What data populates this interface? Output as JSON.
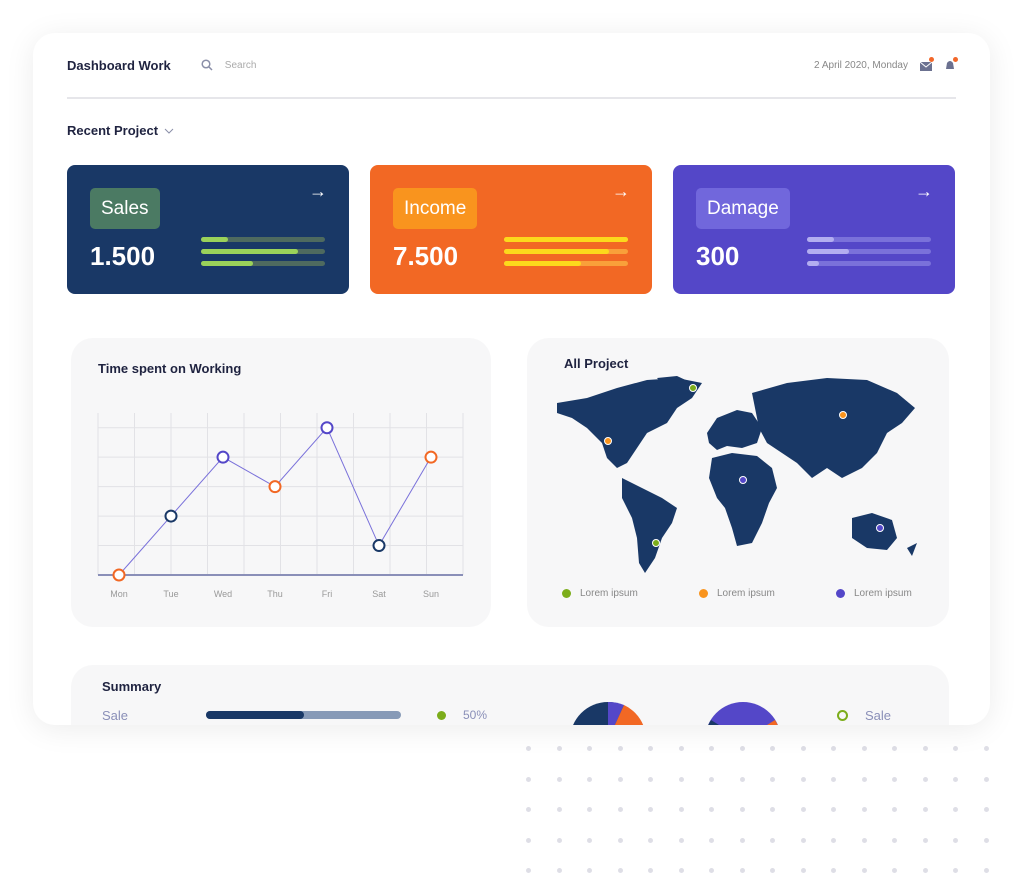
{
  "header": {
    "title": "Dashboard Work",
    "search_placeholder": "Search",
    "date": "2 April 2020, Monday",
    "icons": [
      "search-icon",
      "mail-icon",
      "bell-icon"
    ]
  },
  "recent": {
    "label": "Recent Project"
  },
  "cards": [
    {
      "label": "Sales",
      "value": "1.500",
      "bg": "#193866",
      "label_bg": "#4b7a63",
      "track": "#4e6a5f",
      "fill": "#9ad25a",
      "progress": [
        0.22,
        0.78,
        0.42
      ]
    },
    {
      "label": "Income",
      "value": "7.500",
      "bg": "#f26824",
      "label_bg": "#f9941e",
      "track": "#f9a03a",
      "fill": "#fcd91c",
      "progress": [
        1.0,
        0.85,
        0.62
      ]
    },
    {
      "label": "Damage",
      "value": "300",
      "bg": "#5447c8",
      "label_bg": "#7167dc",
      "track": "#7a71da",
      "fill": "#b3aef0",
      "progress": [
        0.22,
        0.34,
        0.1
      ]
    }
  ],
  "time_chart": {
    "title": "Time spent on Working"
  },
  "chart_data": {
    "type": "line",
    "title": "Time spent on Working",
    "categories": [
      "Mon",
      "Tue",
      "Wed",
      "Thu",
      "Fri",
      "Sat",
      "Sun"
    ],
    "values": [
      0,
      2,
      4,
      3,
      5,
      1,
      4
    ],
    "ylim": [
      0,
      5.5
    ],
    "grid": true,
    "point_colors": [
      "#f26824",
      "#193866",
      "#5447c8",
      "#f26824",
      "#5447c8",
      "#193866",
      "#f26824"
    ]
  },
  "map": {
    "title": "All Project",
    "legend": [
      {
        "label": "Lorem ipsum",
        "color": "#7cad1b"
      },
      {
        "label": "Lorem ipsum",
        "color": "#f9941e"
      },
      {
        "label": "Lorem ipsum",
        "color": "#5447c8"
      }
    ]
  },
  "summary": {
    "title": "Summary",
    "row_label": "Sale",
    "progress": 0.5,
    "percent": "50%",
    "legend_label": "Sale"
  }
}
